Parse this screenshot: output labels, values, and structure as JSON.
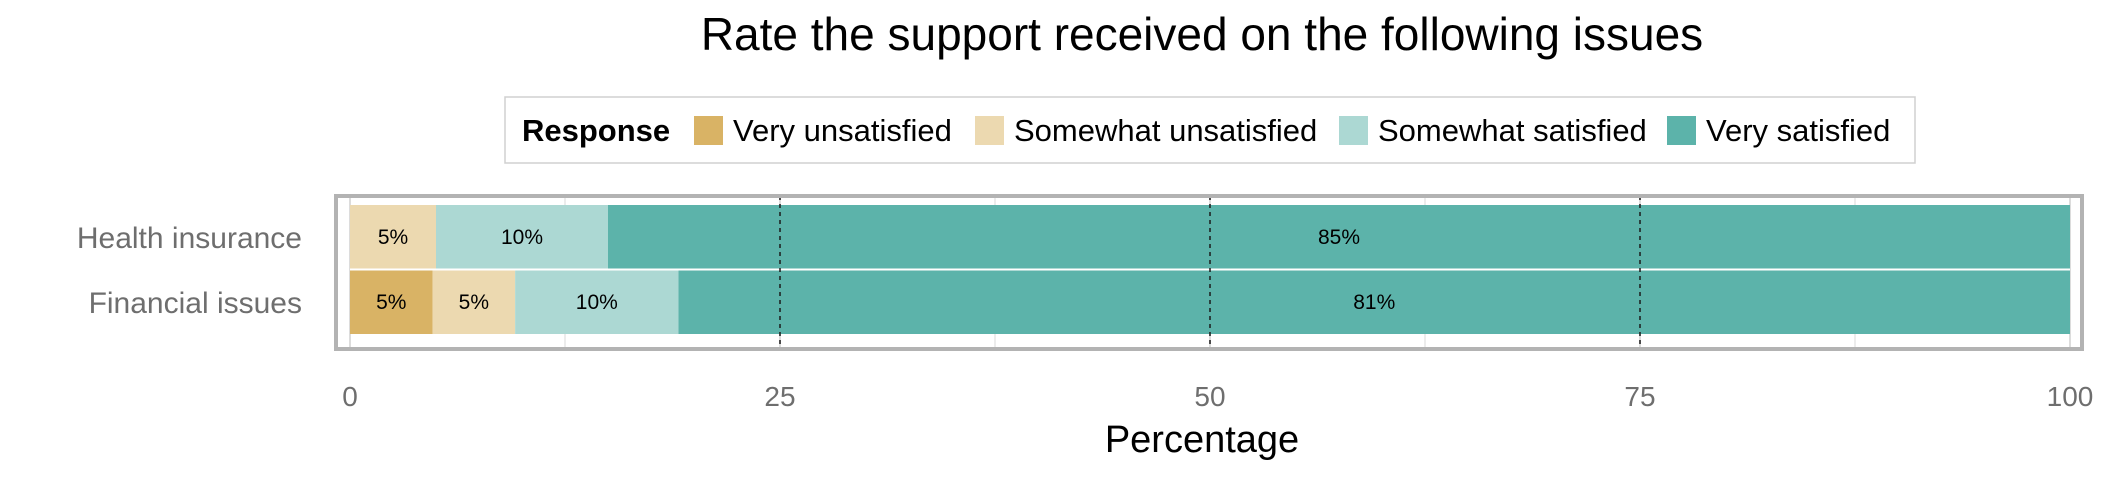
{
  "chart_data": {
    "type": "bar",
    "orientation": "horizontal",
    "stacked": true,
    "title": "Rate the support received on the following issues",
    "xlabel": "Percentage",
    "ylabel": "",
    "xlim": [
      0,
      100
    ],
    "x_ticks": [
      0,
      25,
      50,
      75,
      100
    ],
    "grid": true,
    "legend": {
      "title": "Response",
      "position": "top",
      "entries": [
        "Very unsatisfied",
        "Somewhat unsatisfied",
        "Somewhat satisfied",
        "Very satisfied"
      ]
    },
    "categories": [
      "Health insurance",
      "Financial issues"
    ],
    "series": [
      {
        "name": "Very unsatisfied",
        "color": "#d9b365",
        "values": [
          0,
          4.8
        ],
        "labels": [
          "",
          "5%"
        ]
      },
      {
        "name": "Somewhat unsatisfied",
        "color": "#ecd9b0",
        "values": [
          5,
          4.8
        ],
        "labels": [
          "5%",
          "5%"
        ]
      },
      {
        "name": "Somewhat satisfied",
        "color": "#acd8d3",
        "values": [
          10,
          9.5
        ],
        "labels": [
          "10%",
          "10%"
        ]
      },
      {
        "name": "Very satisfied",
        "color": "#5cb3aa",
        "values": [
          85,
          80.9
        ],
        "labels": [
          "85%",
          "81%"
        ]
      }
    ]
  }
}
